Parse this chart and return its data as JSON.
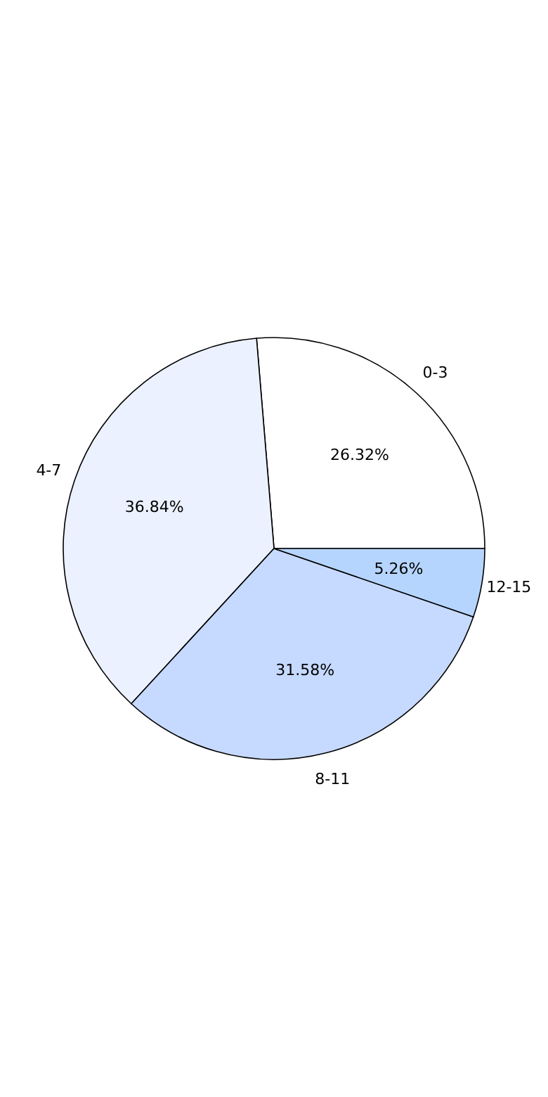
{
  "chart_data": {
    "type": "pie",
    "categories": [
      "0-3",
      "4-7",
      "8-11",
      "12-15"
    ],
    "values": [
      26.32,
      36.84,
      31.58,
      5.26
    ],
    "colors": [
      "#ffffff",
      "#ebf1fe",
      "#c6d9fe",
      "#b5d5fe"
    ],
    "value_labels": [
      "26.32%",
      "36.84%",
      "31.58%",
      "5.26%"
    ]
  }
}
